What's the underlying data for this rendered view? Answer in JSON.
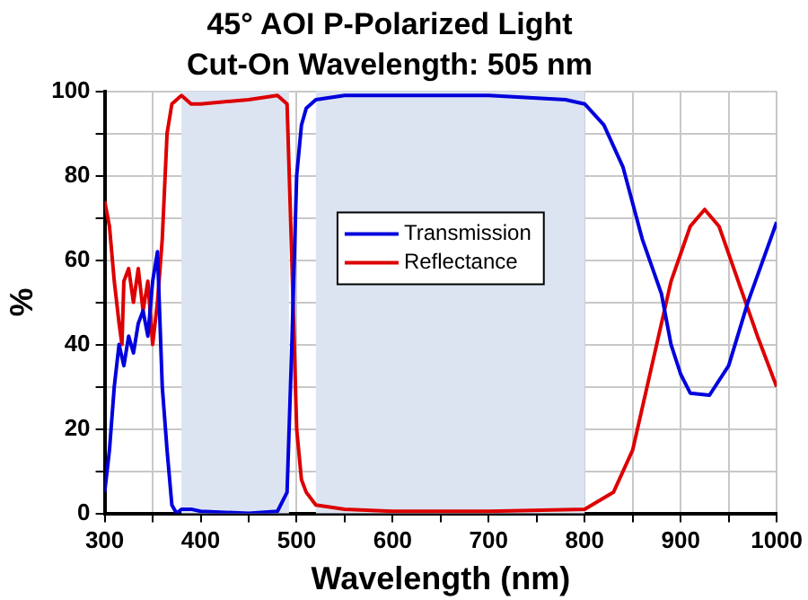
{
  "chart_data": {
    "type": "line",
    "title": "45° AOI P-Polarized Light",
    "subtitle": "Cut-On Wavelength: 505 nm",
    "xlabel": "Wavelength (nm)",
    "ylabel": "%",
    "xlim": [
      300,
      1000
    ],
    "xticks": [
      300,
      {
        "value": 350,
        "label": null
      },
      400,
      {
        "value": 450,
        "label": null
      },
      500,
      {
        "value": 550,
        "label": null
      },
      600,
      {
        "value": 650,
        "label": null
      },
      700,
      {
        "value": 750,
        "label": null
      },
      800,
      {
        "value": 850,
        "label": null
      },
      900,
      {
        "value": 950,
        "label": null
      },
      1000
    ],
    "ylim": [
      0,
      100
    ],
    "yticks": [
      0,
      {
        "value": 10,
        "label": null
      },
      20,
      {
        "value": 30,
        "label": null
      },
      40,
      {
        "value": 50,
        "label": null
      },
      60,
      {
        "value": 70,
        "label": null
      },
      80,
      {
        "value": 90,
        "label": null
      },
      100
    ],
    "grid": true,
    "legend": "center",
    "marker": "none",
    "line_style": "solid",
    "bands": [
      {
        "axis": "x",
        "from": 380,
        "to": 492,
        "color": "#dce4f2"
      },
      {
        "axis": "x",
        "from": 520,
        "to": 800,
        "color": "#dce4f2"
      }
    ],
    "series": [
      {
        "name": "Transmission",
        "color": "#0000dd",
        "x": [
          300,
          305,
          310,
          315,
          320,
          325,
          330,
          335,
          340,
          345,
          350,
          355,
          360,
          365,
          370,
          375,
          380,
          390,
          400,
          450,
          480,
          490,
          495,
          500,
          505,
          510,
          520,
          550,
          600,
          700,
          780,
          800,
          820,
          840,
          860,
          880,
          890,
          900,
          910,
          930,
          950,
          970,
          1000
        ],
        "values": [
          5,
          15,
          30,
          40,
          35,
          42,
          38,
          45,
          48,
          42,
          55,
          62,
          30,
          15,
          2,
          0,
          1,
          1,
          0.5,
          0,
          0.5,
          5,
          40,
          80,
          92,
          96,
          98,
          99,
          99,
          99,
          98,
          97,
          92,
          82,
          65,
          52,
          40,
          33,
          28.5,
          28,
          35,
          50,
          69
        ]
      },
      {
        "name": "Reflectance",
        "color": "#dd0000",
        "x": [
          300,
          305,
          310,
          315,
          318,
          320,
          325,
          330,
          335,
          340,
          345,
          350,
          355,
          360,
          365,
          370,
          375,
          380,
          390,
          400,
          450,
          480,
          490,
          495,
          500,
          505,
          510,
          520,
          550,
          600,
          700,
          800,
          830,
          850,
          870,
          880,
          890,
          910,
          925,
          940,
          960,
          980,
          1000
        ],
        "values": [
          74,
          68,
          55,
          45,
          40,
          55,
          58,
          50,
          58,
          48,
          55,
          40,
          50,
          65,
          90,
          97,
          98,
          99,
          97,
          97,
          98,
          99,
          97,
          60,
          20,
          8,
          5,
          2,
          1,
          0.5,
          0.5,
          1,
          5,
          15,
          35,
          45,
          55,
          68,
          72,
          68,
          55,
          42,
          30
        ]
      }
    ]
  }
}
